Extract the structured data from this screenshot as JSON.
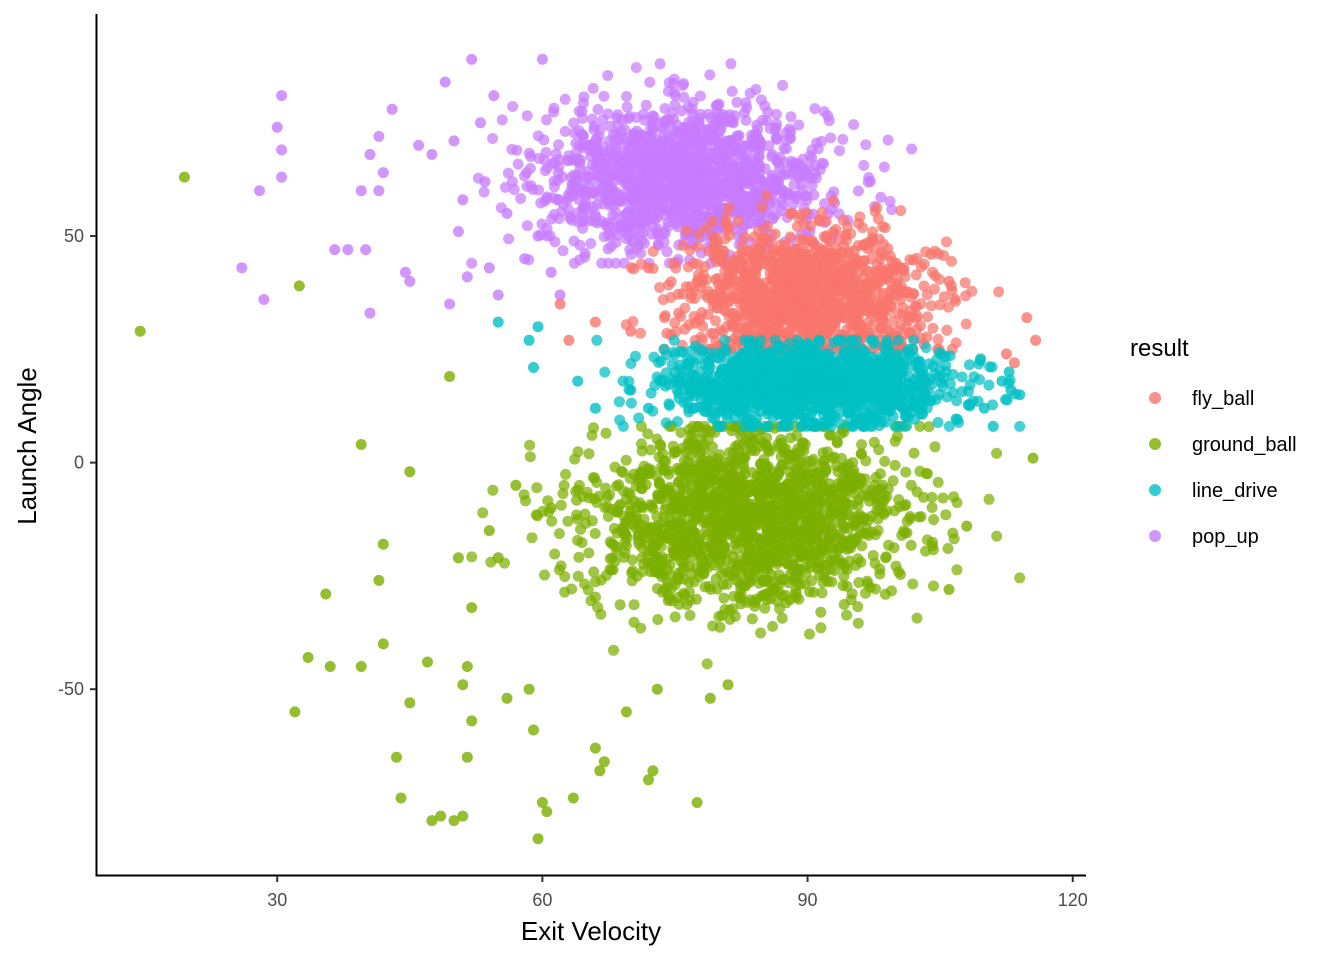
{
  "chart_data": {
    "type": "scatter",
    "xlabel": "Exit Velocity",
    "ylabel": "Launch Angle",
    "xlim": [
      9.5,
      121.5
    ],
    "ylim": [
      -91,
      99
    ],
    "xticks": [
      30,
      60,
      90,
      120
    ],
    "xtick_labels": [
      "30",
      "60",
      "90",
      "120"
    ],
    "yticks": [
      -50,
      0,
      50
    ],
    "ytick_labels": [
      "-50",
      "0",
      "50"
    ],
    "grid": false,
    "legend": {
      "title": "result",
      "position": "right"
    },
    "series": [
      {
        "name": "fly_ball",
        "color": "#F8766D",
        "cluster": {
          "x_mean": 90,
          "x_sd": 7,
          "y_mean": 37,
          "y_sd": 7,
          "y_min": 25,
          "y_max": 62,
          "n": 1300
        },
        "outliers": [
          [
            115.8,
            27
          ],
          [
            114.8,
            32
          ],
          [
            113.4,
            22
          ],
          [
            112.5,
            24
          ],
          [
            106,
            40
          ],
          [
            104,
            46
          ],
          [
            62,
            35
          ],
          [
            63,
            27
          ],
          [
            66,
            31
          ],
          [
            70,
            29
          ],
          [
            72,
            43
          ],
          [
            100,
            44
          ]
        ]
      },
      {
        "name": "ground_ball",
        "color": "#7CAE00",
        "cluster": {
          "x_mean": 83,
          "x_sd": 9,
          "y_mean": -12,
          "y_sd": 10,
          "y_min": -45,
          "y_max": 8,
          "n": 1700
        },
        "outliers": [
          [
            14.5,
            29
          ],
          [
            19.5,
            63
          ],
          [
            32.5,
            39
          ],
          [
            39.5,
            4
          ],
          [
            45,
            -2
          ],
          [
            49.5,
            19
          ],
          [
            42,
            -18
          ],
          [
            35.5,
            -29
          ],
          [
            41.5,
            -26
          ],
          [
            33.5,
            -43
          ],
          [
            36,
            -45
          ],
          [
            39.5,
            -45
          ],
          [
            47,
            -44
          ],
          [
            42,
            -40
          ],
          [
            32,
            -55
          ],
          [
            45,
            -53
          ],
          [
            51,
            -49
          ],
          [
            51.5,
            -45
          ],
          [
            51.5,
            -65
          ],
          [
            52,
            -57
          ],
          [
            43.5,
            -65
          ],
          [
            44,
            -74
          ],
          [
            47.5,
            -79
          ],
          [
            48.5,
            -78
          ],
          [
            50,
            -79
          ],
          [
            51,
            -78
          ],
          [
            59.5,
            -83
          ],
          [
            60,
            -75
          ],
          [
            60.5,
            -77
          ],
          [
            63.5,
            -74
          ],
          [
            66.5,
            -68
          ],
          [
            72,
            -70
          ],
          [
            72.5,
            -68
          ],
          [
            77.5,
            -75
          ],
          [
            66,
            -63
          ],
          [
            67,
            -66
          ],
          [
            69.5,
            -55
          ],
          [
            73,
            -50
          ],
          [
            79,
            -52
          ],
          [
            81,
            -49
          ],
          [
            59,
            -59
          ],
          [
            58.5,
            -50
          ],
          [
            56,
            -52
          ],
          [
            50.5,
            -21
          ],
          [
            52,
            -32
          ],
          [
            54,
            -15
          ],
          [
            55,
            -21
          ],
          [
            57,
            -5
          ],
          [
            61,
            -10
          ],
          [
            115.5,
            1
          ],
          [
            106,
            -28
          ],
          [
            108,
            -14
          ]
        ]
      },
      {
        "name": "line_drive",
        "color": "#00BFC4",
        "cluster": {
          "x_mean": 90,
          "x_sd": 8,
          "y_mean": 17,
          "y_sd": 4.5,
          "y_min": 8,
          "y_max": 27,
          "n": 1400
        },
        "outliers": [
          [
            55,
            31
          ],
          [
            58.5,
            27
          ],
          [
            59,
            21
          ],
          [
            59.5,
            30
          ],
          [
            64,
            18
          ],
          [
            66,
            12
          ],
          [
            70,
            16
          ],
          [
            72,
            12
          ],
          [
            110,
            12
          ],
          [
            111,
            8
          ],
          [
            112,
            18
          ],
          [
            112.8,
            20
          ],
          [
            113,
            16
          ],
          [
            114,
            15
          ]
        ]
      },
      {
        "name": "pop_up",
        "color": "#C77CFF",
        "cluster": {
          "x_mean": 76,
          "x_sd": 8,
          "y_mean": 63,
          "y_sd": 8,
          "y_min": 44,
          "y_max": 88,
          "n": 1500
        },
        "outliers": [
          [
            26,
            43
          ],
          [
            28,
            60
          ],
          [
            28.5,
            36
          ],
          [
            30,
            74
          ],
          [
            30.5,
            69
          ],
          [
            30.5,
            63
          ],
          [
            30.5,
            81
          ],
          [
            36.5,
            47
          ],
          [
            38,
            47
          ],
          [
            39.5,
            60
          ],
          [
            40,
            47
          ],
          [
            40.5,
            68
          ],
          [
            41.5,
            72
          ],
          [
            40.5,
            33
          ],
          [
            41.5,
            60
          ],
          [
            42,
            64
          ],
          [
            43,
            78
          ],
          [
            44.5,
            42
          ],
          [
            45,
            40
          ],
          [
            46,
            70
          ],
          [
            47.5,
            68
          ],
          [
            49,
            84
          ],
          [
            49.5,
            35
          ],
          [
            50,
            71
          ],
          [
            50.5,
            51
          ],
          [
            51,
            58
          ],
          [
            51.5,
            41
          ],
          [
            52,
            89
          ],
          [
            53,
            75
          ],
          [
            53.5,
            62
          ],
          [
            54,
            43
          ],
          [
            55,
            37
          ],
          [
            54.5,
            81
          ],
          [
            56,
            55
          ],
          [
            58,
            45
          ],
          [
            59.5,
            50
          ],
          [
            60,
            89
          ],
          [
            61,
            42
          ],
          [
            62,
            37
          ]
        ]
      }
    ]
  }
}
